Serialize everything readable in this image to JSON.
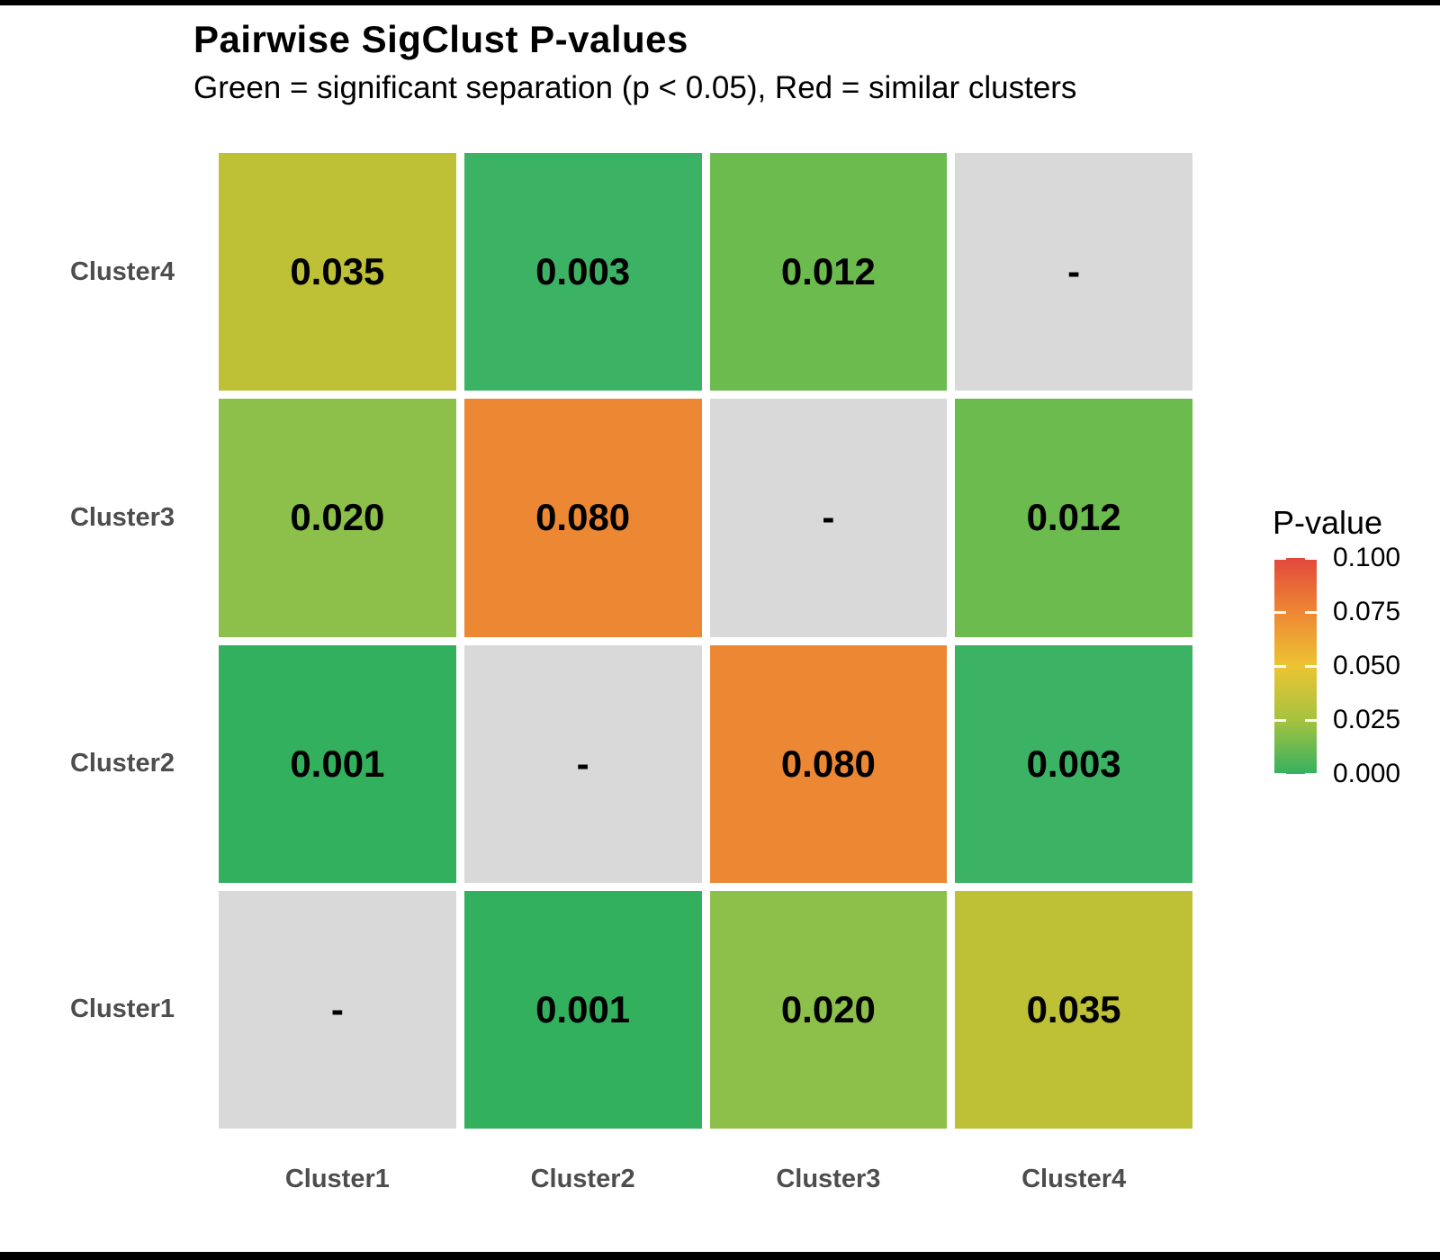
{
  "chart_data": {
    "type": "heatmap",
    "title": "Pairwise SigClust P-values",
    "subtitle": "Green = significant separation (p < 0.05), Red = similar clusters",
    "x_categories": [
      "Cluster1",
      "Cluster2",
      "Cluster3",
      "Cluster4"
    ],
    "y_categories_top_to_bottom": [
      "Cluster4",
      "Cluster3",
      "Cluster2",
      "Cluster1"
    ],
    "na_text": "-",
    "na_color": "#d9d9d9",
    "rows": [
      {
        "y": "Cluster4",
        "cells": [
          {
            "text": "0.035",
            "value": 0.035,
            "color": "#bec135"
          },
          {
            "text": "0.003",
            "value": 0.003,
            "color": "#3cb264"
          },
          {
            "text": "0.012",
            "value": 0.012,
            "color": "#6cbb4e"
          },
          {
            "text": "-",
            "value": null,
            "color": "#d9d9d9"
          }
        ]
      },
      {
        "y": "Cluster3",
        "cells": [
          {
            "text": "0.020",
            "value": 0.02,
            "color": "#8cc04a"
          },
          {
            "text": "0.080",
            "value": 0.08,
            "color": "#ec8733"
          },
          {
            "text": "-",
            "value": null,
            "color": "#d9d9d9"
          },
          {
            "text": "0.012",
            "value": 0.012,
            "color": "#6cbb4e"
          }
        ]
      },
      {
        "y": "Cluster2",
        "cells": [
          {
            "text": "0.001",
            "value": 0.001,
            "color": "#33b05e"
          },
          {
            "text": "-",
            "value": null,
            "color": "#d9d9d9"
          },
          {
            "text": "0.080",
            "value": 0.08,
            "color": "#ec8733"
          },
          {
            "text": "0.003",
            "value": 0.003,
            "color": "#3cb264"
          }
        ]
      },
      {
        "y": "Cluster1",
        "cells": [
          {
            "text": "-",
            "value": null,
            "color": "#d9d9d9"
          },
          {
            "text": "0.001",
            "value": 0.001,
            "color": "#33b05e"
          },
          {
            "text": "0.020",
            "value": 0.02,
            "color": "#8cc04a"
          },
          {
            "text": "0.035",
            "value": 0.035,
            "color": "#bec135"
          }
        ]
      }
    ],
    "legend": {
      "title": "P-value",
      "ticks": [
        "0.100",
        "0.075",
        "0.050",
        "0.025",
        "0.000"
      ],
      "range": [
        0.0,
        0.1
      ],
      "position": "right",
      "gradient_bottom_to_top": [
        "#35b060",
        "#a5c33f",
        "#ecc433",
        "#ee8733",
        "#e2483c"
      ]
    },
    "grid": "off"
  }
}
